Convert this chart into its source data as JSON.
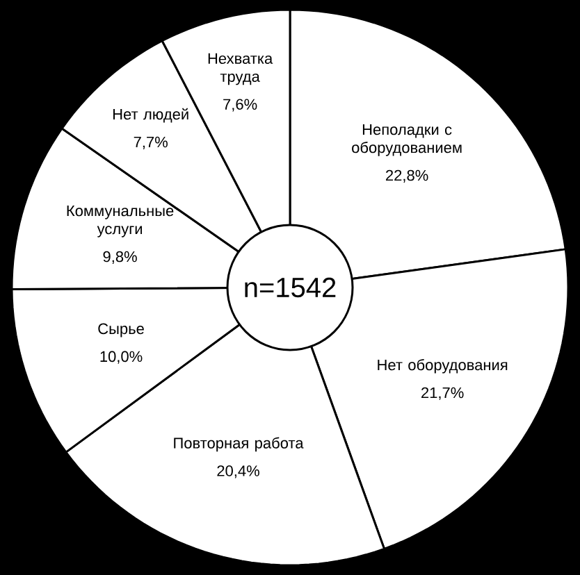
{
  "chart_data": {
    "type": "donut",
    "categories": [
      "Неполадки с оборудованием",
      "Нет оборудования",
      "Повторная работа",
      "Сырье",
      "Коммунальные услуги",
      "Нет людей",
      "Нехватка труда"
    ],
    "values": [
      22.8,
      21.7,
      20.4,
      10.0,
      9.8,
      7.7,
      7.6
    ],
    "value_labels": [
      "22,8%",
      "21,7%",
      "20,4%",
      "10,0%",
      "9,8%",
      "7,7%",
      "7,6%"
    ],
    "colors": [
      "#ffffff",
      "#ffffff",
      "#ffffff",
      "#ffffff",
      "#ffffff",
      "#ffffff",
      "#ffffff"
    ],
    "annotations": [
      "n=1542"
    ]
  }
}
